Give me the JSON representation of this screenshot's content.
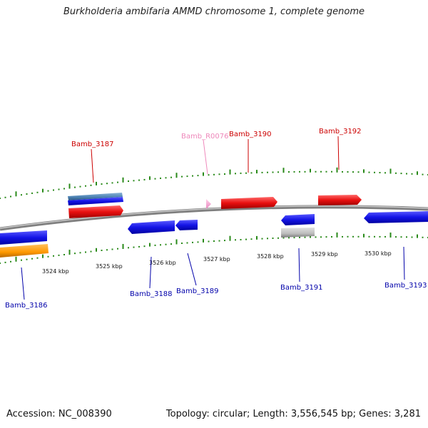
{
  "title": "Burkholderia ambifaria AMMD chromosome 1, complete genome",
  "footer": {
    "accession": "Accession: NC_008390",
    "summary": "Topology: circular; Length: 3,556,545 bp; Genes: 3,281"
  },
  "colors": {
    "backbone": "#8a8a8a",
    "tick": "#2a8a1a",
    "forward_cds": "#dd1111",
    "reverse_cds": "#1a1ae0",
    "rna_label": "#ee88bb",
    "forward_label": "#cc0000",
    "reverse_label": "#0000aa",
    "orange_feature": "#ff9900",
    "gray_feature": "#b8b8b8",
    "steel_feature": "#4a7fb0"
  },
  "scale_labels": [
    "3524 kbp",
    "3525 kbp",
    "3526 kbp",
    "3527 kbp",
    "3528 kbp",
    "3529 kbp",
    "3530 kbp"
  ],
  "gene_labels": [
    {
      "name": "Bamb_3187",
      "strand": "forward"
    },
    {
      "name": "Bamb_R0076",
      "strand": "rna"
    },
    {
      "name": "Bamb_3190",
      "strand": "forward"
    },
    {
      "name": "Bamb_3192",
      "strand": "forward"
    },
    {
      "name": "Bamb_3186",
      "strand": "reverse"
    },
    {
      "name": "Bamb_3188",
      "strand": "reverse"
    },
    {
      "name": "Bamb_3189",
      "strand": "reverse"
    },
    {
      "name": "Bamb_3191",
      "strand": "reverse"
    },
    {
      "name": "Bamb_3193",
      "strand": "reverse"
    }
  ]
}
